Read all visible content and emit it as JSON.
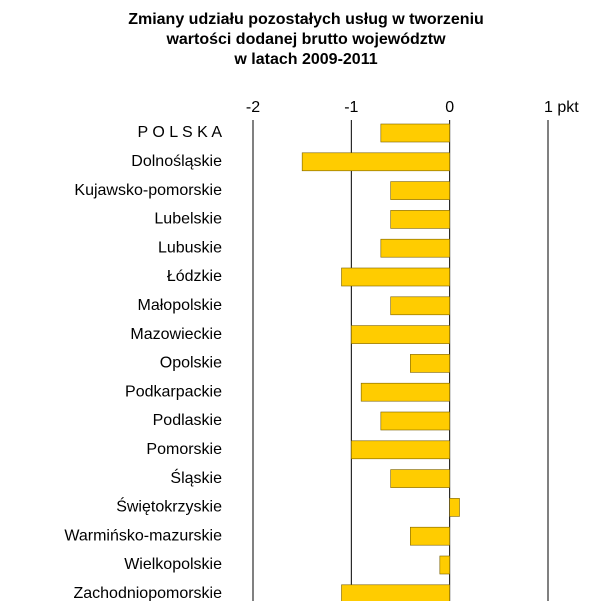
{
  "chart_data": {
    "type": "barh",
    "title": [
      "Zmiany udziału pozostałych usług w tworzeniu",
      "wartości dodanej brutto województw",
      "w latach 2009-2011"
    ],
    "categories": [
      "P O L S K A",
      "Dolnośląskie",
      "Kujawsko-pomorskie",
      "Lubelskie",
      "Lubuskie",
      "Łódzkie",
      "Małopolskie",
      "Mazowieckie",
      "Opolskie",
      "Podkarpackie",
      "Podlaskie",
      "Pomorskie",
      "Śląskie",
      "Świętokrzyskie",
      "Warmińsko-mazurskie",
      "Wielkopolskie",
      "Zachodniopomorskie"
    ],
    "values": [
      -0.7,
      -1.5,
      -0.6,
      -0.6,
      -0.7,
      -1.1,
      -0.6,
      -1.0,
      -0.4,
      -0.9,
      -0.7,
      -1.0,
      -0.6,
      0.1,
      -0.4,
      -0.1,
      -1.1
    ],
    "color": "#ffcc00",
    "xlim": [
      -2,
      1
    ],
    "xticks": [
      -2,
      -1,
      0,
      {
        "value": 1,
        "label": "1 pkt"
      }
    ],
    "grid": true
  }
}
